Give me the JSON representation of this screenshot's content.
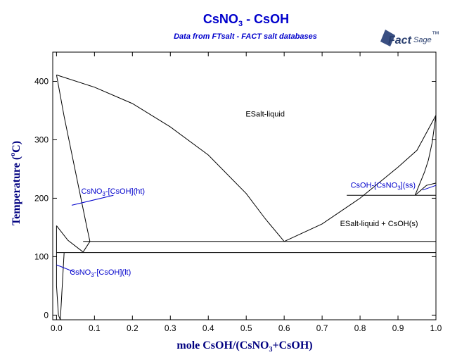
{
  "chart_data": {
    "type": "line",
    "title": "CsNO3 - CsOH",
    "title_parts": {
      "main": "CsNO",
      "sub": "3",
      "rest": " - CsOH"
    },
    "subtitle": "Data from FTsalt - FACT salt databases",
    "logo": {
      "text": "FactSage",
      "main": "Fact",
      "rest": "Sage",
      "tm": "™"
    },
    "xlabel": "mole CsOH/(CsNO3+CsOH)",
    "xlabel_parts": {
      "a": "mole CsOH/(CsNO",
      "sub": "3",
      "b": "+CsOH)"
    },
    "ylabel": "Temperature (°C)",
    "ylabel_parts": {
      "a": "Temperature (",
      "sup": "o",
      "b": "C)"
    },
    "xlim": [
      -0.01,
      1.0
    ],
    "ylim": [
      -8,
      450
    ],
    "x_ticks": [
      0,
      0.1,
      0.2,
      0.3,
      0.4,
      0.5,
      0.6,
      0.7,
      0.8,
      0.9,
      1.0
    ],
    "x_tick_labels": [
      "0.0",
      "0.1",
      "0.2",
      "0.3",
      "0.4",
      "0.5",
      "0.6",
      "0.7",
      "0.8",
      "0.9",
      "1.0"
    ],
    "y_ticks": [
      0,
      100,
      200,
      300,
      400
    ],
    "y_tick_labels": [
      "0",
      "100",
      "200",
      "300",
      "400"
    ],
    "grid": false,
    "colors": {
      "title": "#0000cc",
      "axis_title": "#000080",
      "curves": "#000000",
      "phase_labels": "#0000cc"
    },
    "series": [
      {
        "points": [
          [
            0.0,
            411
          ],
          [
            0.1,
            390
          ],
          [
            0.2,
            362
          ],
          [
            0.3,
            322
          ],
          [
            0.4,
            274
          ],
          [
            0.5,
            208
          ],
          [
            0.55,
            165
          ],
          [
            0.6,
            126
          ]
        ]
      },
      {
        "points": [
          [
            0.6,
            126
          ],
          [
            0.7,
            156
          ],
          [
            0.8,
            200
          ],
          [
            0.9,
            253
          ],
          [
            0.95,
            282
          ],
          [
            1.0,
            342
          ]
        ]
      },
      {
        "points": [
          [
            0.0,
            411
          ],
          [
            0.02,
            340
          ],
          [
            0.05,
            245
          ],
          [
            0.08,
            150
          ],
          [
            0.088,
            126
          ]
        ]
      },
      {
        "points": [
          [
            0.0,
            153
          ],
          [
            0.03,
            128
          ],
          [
            0.07,
            108
          ]
        ]
      },
      {
        "points": [
          [
            0.0,
            153
          ],
          [
            0.0,
            50
          ],
          [
            0.005,
            0
          ],
          [
            0.01,
            -8
          ]
        ]
      },
      {
        "points": [
          [
            0.01,
            -8
          ],
          [
            0.02,
            107
          ]
        ]
      },
      {
        "points": [
          [
            0.07,
            108
          ],
          [
            0.088,
            126
          ]
        ]
      },
      {
        "points": [
          [
            0.07,
            126
          ],
          [
            1.0,
            126
          ]
        ]
      },
      {
        "points": [
          [
            0.0,
            107
          ],
          [
            1.0,
            107
          ]
        ]
      },
      {
        "points": [
          [
            0.765,
            205
          ],
          [
            1.0,
            205
          ]
        ]
      },
      {
        "points": [
          [
            0.945,
            205
          ],
          [
            0.975,
            222
          ],
          [
            1.0,
            226
          ]
        ]
      },
      {
        "points": [
          [
            0.945,
            205
          ],
          [
            0.97,
            245
          ],
          [
            0.98,
            265
          ],
          [
            0.99,
            295
          ],
          [
            1.0,
            342
          ]
        ]
      },
      {
        "points": [
          [
            1.0,
            342
          ],
          [
            1.0,
            205
          ]
        ]
      }
    ],
    "annotations": [
      {
        "text": "ESalt-liquid",
        "x": 0.55,
        "y": 340,
        "color": "#000000"
      },
      {
        "text": "ESalt-liquid + CsOH(s)",
        "x": 0.85,
        "y": 152,
        "color": "#000000"
      }
    ],
    "phase_labels": [
      {
        "a": "CsNO",
        "sub": "3",
        "b": "-[CsOH](ht)",
        "x": 0.065,
        "y": 208,
        "leader": [
          [
            0.04,
            188
          ],
          [
            0.15,
            205
          ]
        ]
      },
      {
        "a": "CsNO",
        "sub": "3",
        "b": "-[CsOH](lt)",
        "x": 0.035,
        "y": 69,
        "leader": [
          [
            0.0,
            86
          ],
          [
            0.05,
            73
          ]
        ]
      },
      {
        "a": "CsOH-[CsNO",
        "sub": "3",
        "b": "](ss)",
        "x": 0.775,
        "y": 218,
        "leader": [
          [
            0.965,
            214
          ],
          [
            1.0,
            222
          ]
        ]
      }
    ]
  }
}
